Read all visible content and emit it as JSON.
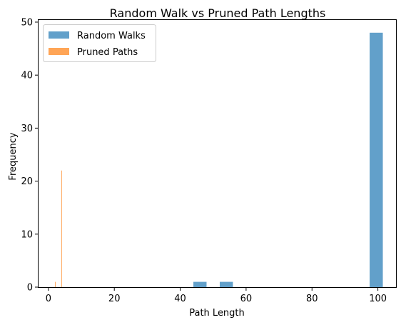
{
  "chart_data": {
    "type": "bar",
    "title": "Random Walk vs Pruned Path Lengths",
    "xlabel": "Path Length",
    "ylabel": "Frequency",
    "xlim": [
      -3.0,
      105.5
    ],
    "ylim": [
      0,
      50.4
    ],
    "xticks": [
      0,
      20,
      40,
      60,
      80,
      100
    ],
    "yticks": [
      0,
      10,
      20,
      30,
      40,
      50
    ],
    "legend_position": "upper left",
    "series": [
      {
        "name": "Random Walks",
        "color": "#1f77b4",
        "bins": [
          {
            "x0": 44.0,
            "x1": 48.0,
            "count": 1
          },
          {
            "x0": 52.0,
            "x1": 56.0,
            "count": 1
          },
          {
            "x0": 97.5,
            "x1": 101.5,
            "count": 48
          }
        ]
      },
      {
        "name": "Pruned Paths",
        "color": "#ff7f0e",
        "bins": [
          {
            "x0": 2.0,
            "x1": 2.2,
            "count": 1
          },
          {
            "x0": 3.9,
            "x1": 4.1,
            "count": 22
          }
        ]
      }
    ]
  }
}
